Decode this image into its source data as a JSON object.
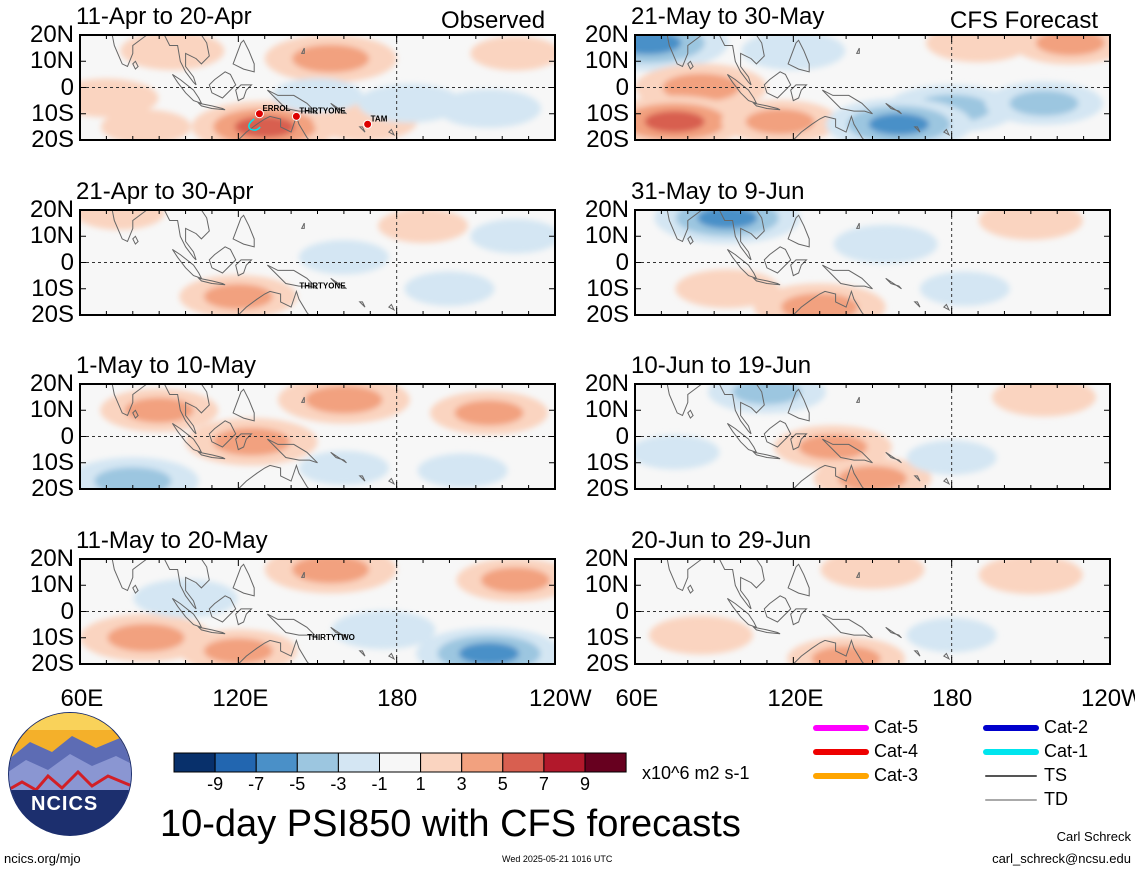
{
  "figure_title": "10-day PSI850 with CFS forecasts",
  "observed_label": "Observed",
  "forecast_label": "CFS Forecast",
  "logo_text": "NCICS",
  "footer_left": "ncics.org/mjo",
  "footer_center": "Wed 2025-05-21 1016 UTC",
  "footer_right_name": "Carl Schreck",
  "footer_right_email": "carl_schreck@ncsu.edu",
  "colorbar": {
    "units": "x10^6 m2 s-1",
    "tick_labels": [
      "-9",
      "-7",
      "-5",
      "-3",
      "-1",
      "1",
      "3",
      "5",
      "7",
      "9"
    ],
    "colors": [
      "#08306b",
      "#2266b0",
      "#4a90c8",
      "#9cc6e0",
      "#d4e6f3",
      "#f7f7f7",
      "#fad4c0",
      "#f2a17f",
      "#d85f50",
      "#b2182b",
      "#67001f"
    ]
  },
  "legend": [
    {
      "label": "Cat-5",
      "color": "#ff00ff"
    },
    {
      "label": "Cat-4",
      "color": "#ee0000"
    },
    {
      "label": "Cat-3",
      "color": "#ffa500"
    },
    {
      "label": "Cat-2",
      "color": "#0000cc"
    },
    {
      "label": "Cat-1",
      "color": "#00e5ee"
    },
    {
      "label": "TS",
      "color": "#555555"
    },
    {
      "label": "TD",
      "color": "#aaaaaa"
    }
  ],
  "axes": {
    "lat_labels": [
      "20N",
      "10N",
      "0",
      "10S",
      "20S"
    ],
    "lon_labels": [
      "60E",
      "120E",
      "180",
      "120W"
    ]
  },
  "chart_data": {
    "type": "heatmap",
    "title": "10-day PSI850 with CFS forecasts",
    "units": "x10^6 m2 s-1",
    "x_range": [
      "60E",
      "120W"
    ],
    "y_range": [
      "20S",
      "20N"
    ],
    "panels": [
      {
        "label": "11-Apr to 20-Apr",
        "source": "Observed",
        "storms": [
          "ERROL",
          "THIRTYONE",
          "TAM"
        ],
        "blobs": [
          {
            "lon": 155,
            "lat": 11,
            "v": 4
          },
          {
            "lon": 70,
            "lat": -4,
            "v": 2
          },
          {
            "lon": 130,
            "lat": -15,
            "v": 5
          },
          {
            "lon": 95,
            "lat": 14,
            "v": 2
          },
          {
            "lon": 168,
            "lat": -13,
            "v": 2
          },
          {
            "lon": 185,
            "lat": -6,
            "v": -2
          },
          {
            "lon": 215,
            "lat": -8,
            "v": -2
          },
          {
            "lon": 150,
            "lat": -3,
            "v": -1
          },
          {
            "lon": 225,
            "lat": 13,
            "v": 1
          },
          {
            "lon": 85,
            "lat": -15,
            "v": 1
          }
        ]
      },
      {
        "label": "21-Apr to 30-Apr",
        "storms": [
          "THIRTYONE"
        ],
        "blobs": [
          {
            "lon": 120,
            "lat": -13,
            "v": 3
          },
          {
            "lon": 75,
            "lat": 19,
            "v": 1
          },
          {
            "lon": 160,
            "lat": 2,
            "v": -1
          },
          {
            "lon": 200,
            "lat": -10,
            "v": -1
          },
          {
            "lon": 225,
            "lat": 10,
            "v": -1
          },
          {
            "lon": 190,
            "lat": 14,
            "v": 1
          }
        ]
      },
      {
        "label": "1-May to 10-May",
        "blobs": [
          {
            "lon": 90,
            "lat": 10,
            "v": 3
          },
          {
            "lon": 160,
            "lat": 14,
            "v": 4
          },
          {
            "lon": 125,
            "lat": -2,
            "v": 4
          },
          {
            "lon": 215,
            "lat": 9,
            "v": 3
          },
          {
            "lon": 80,
            "lat": -17,
            "v": -4
          },
          {
            "lon": 160,
            "lat": -12,
            "v": -1
          },
          {
            "lon": 205,
            "lat": -13,
            "v": -1
          }
        ]
      },
      {
        "label": "11-May to 20-May",
        "storms": [
          "THIRTYTWO"
        ],
        "blobs": [
          {
            "lon": 155,
            "lat": 16,
            "v": 4
          },
          {
            "lon": 225,
            "lat": 12,
            "v": 3
          },
          {
            "lon": 85,
            "lat": -10,
            "v": 4
          },
          {
            "lon": 120,
            "lat": -15,
            "v": 3
          },
          {
            "lon": 100,
            "lat": 5,
            "v": -2
          },
          {
            "lon": 215,
            "lat": -16,
            "v": -5
          },
          {
            "lon": 175,
            "lat": -7,
            "v": -2
          }
        ]
      },
      {
        "label": "21-May to 30-May",
        "source": "CFS Forecast",
        "blobs": [
          {
            "lon": 65,
            "lat": 17,
            "v": -6
          },
          {
            "lon": 85,
            "lat": 0,
            "v": 4
          },
          {
            "lon": 75,
            "lat": -13,
            "v": 5
          },
          {
            "lon": 115,
            "lat": -13,
            "v": 3
          },
          {
            "lon": 190,
            "lat": 17,
            "v": 2
          },
          {
            "lon": 225,
            "lat": 17,
            "v": 3
          },
          {
            "lon": 180,
            "lat": -8,
            "v": -4
          },
          {
            "lon": 160,
            "lat": -14,
            "v": -5
          },
          {
            "lon": 120,
            "lat": 14,
            "v": -2
          },
          {
            "lon": 215,
            "lat": -6,
            "v": -3
          }
        ]
      },
      {
        "label": "31-May to 9-Jun",
        "blobs": [
          {
            "lon": 95,
            "lat": 17,
            "v": -5
          },
          {
            "lon": 155,
            "lat": 7,
            "v": -2
          },
          {
            "lon": 95,
            "lat": -10,
            "v": 2
          },
          {
            "lon": 130,
            "lat": -17,
            "v": 4
          },
          {
            "lon": 185,
            "lat": -10,
            "v": -1
          },
          {
            "lon": 210,
            "lat": 16,
            "v": 2
          }
        ]
      },
      {
        "label": "10-Jun to 19-Jun",
        "blobs": [
          {
            "lon": 110,
            "lat": 17,
            "v": -3
          },
          {
            "lon": 135,
            "lat": -4,
            "v": 3
          },
          {
            "lon": 150,
            "lat": -16,
            "v": 3
          },
          {
            "lon": 215,
            "lat": 15,
            "v": 2
          },
          {
            "lon": 180,
            "lat": -8,
            "v": -1
          },
          {
            "lon": 75,
            "lat": -6,
            "v": -1
          }
        ]
      },
      {
        "label": "20-Jun to 29-Jun",
        "blobs": [
          {
            "lon": 150,
            "lat": 16,
            "v": 2
          },
          {
            "lon": 210,
            "lat": 14,
            "v": 2
          },
          {
            "lon": 85,
            "lat": -9,
            "v": 2
          },
          {
            "lon": 140,
            "lat": -18,
            "v": 3
          },
          {
            "lon": 180,
            "lat": -9,
            "v": -1
          }
        ]
      }
    ]
  }
}
